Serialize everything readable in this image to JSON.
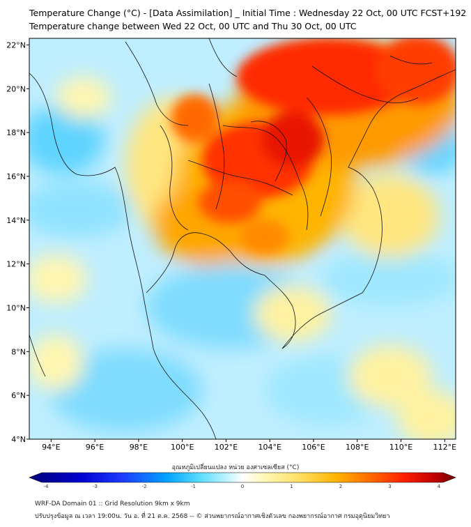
{
  "header": {
    "title_line1": "Temperature Change (°C) - [Data Assimilation] _ Initial Time : Wednesday 22 Oct, 00 UTC FCST+192",
    "title_line2": "Temperature change between Wed 22 Oct, 00 UTC and Thu 30 Oct, 00 UTC"
  },
  "map": {
    "lat_ticks": [
      "22°N",
      "20°N",
      "18°N",
      "16°N",
      "14°N",
      "12°N",
      "10°N",
      "8°N",
      "6°N",
      "4°N"
    ],
    "lon_ticks": [
      "94°E",
      "96°E",
      "98°E",
      "100°E",
      "102°E",
      "104°E",
      "106°E",
      "108°E",
      "110°E",
      "112°E"
    ],
    "lat_range": [
      4,
      22.3
    ],
    "lon_range": [
      93,
      112.5
    ]
  },
  "colorbar": {
    "label": "อุณหภูมิเปลี่ยนแปลง หน่วย องศาเซลเซียส (°C)",
    "ticks": [
      "-4",
      "-3",
      "-2",
      "-1",
      "0",
      "1",
      "2",
      "3",
      "4"
    ],
    "range": [
      -4,
      4
    ],
    "colors": [
      "#00007a",
      "#0000d0",
      "#1e3cff",
      "#00a0ff",
      "#36d6ff",
      "#a6f0ff",
      "#ffffff",
      "#fff6a0",
      "#ffe066",
      "#ffb400",
      "#ff6a00",
      "#ff1e00",
      "#c00000",
      "#700000"
    ]
  },
  "footer": {
    "line1": "WRF-DA Domain 01 :: Grid Resolution 9km x 9km",
    "line2": "ปรับปรุงข้อมูล ณ เวลา 19:00น. วัน อ. ที่ 21 ต.ค. 2568 -- © ส่วนพยากรณ์อากาศเชิงตัวเลข กองพยากรณ์อากาศ กรมอุตุนิยมวิทยา"
  }
}
